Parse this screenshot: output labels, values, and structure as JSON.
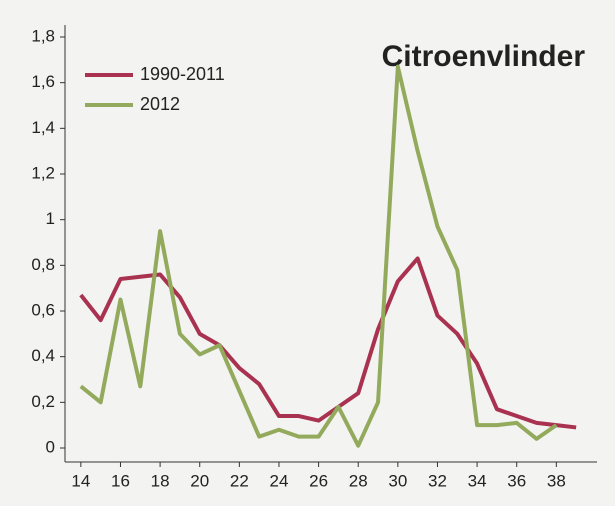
{
  "chart_data": {
    "type": "line",
    "title": "Citroenvlinder",
    "x": [
      14,
      15,
      16,
      17,
      18,
      19,
      20,
      21,
      22,
      23,
      24,
      25,
      26,
      27,
      28,
      29,
      30,
      31,
      32,
      33,
      34,
      35,
      36,
      37,
      38,
      39
    ],
    "series": [
      {
        "name": "1990-2011",
        "color": "#a8324f",
        "values": [
          0.67,
          0.56,
          0.74,
          0.75,
          0.76,
          0.66,
          0.5,
          0.45,
          0.35,
          0.28,
          0.14,
          0.14,
          0.12,
          0.18,
          0.24,
          0.52,
          0.73,
          0.83,
          0.58,
          0.5,
          0.37,
          0.17,
          0.14,
          0.11,
          0.1,
          0.09
        ]
      },
      {
        "name": "2012",
        "color": "#93aa5c",
        "values": [
          0.27,
          0.2,
          0.65,
          0.27,
          0.95,
          0.5,
          0.41,
          0.45,
          0.25,
          0.05,
          0.08,
          0.05,
          0.05,
          0.18,
          0.01,
          0.2,
          1.67,
          1.3,
          0.97,
          0.78,
          0.1,
          0.1,
          0.11,
          0.04,
          0.1,
          null
        ]
      }
    ],
    "xlim": [
      13.2,
      39.8
    ],
    "xticks": [
      14,
      16,
      18,
      20,
      22,
      24,
      26,
      28,
      30,
      32,
      34,
      36,
      38
    ],
    "ylim": [
      0,
      1.8
    ],
    "yticks": [
      0,
      {
        "value": 0.2,
        "label": "0,2"
      },
      {
        "value": 0.4,
        "label": "0,4"
      },
      {
        "value": 0.6,
        "label": "0,6"
      },
      {
        "value": 0.8,
        "label": "0,8"
      },
      1,
      {
        "value": 1.2,
        "label": "1,2"
      },
      {
        "value": 1.4,
        "label": "1,4"
      },
      {
        "value": 1.6,
        "label": "1,6"
      },
      {
        "value": 1.8,
        "label": "1,8"
      }
    ],
    "legend": "upper left"
  }
}
